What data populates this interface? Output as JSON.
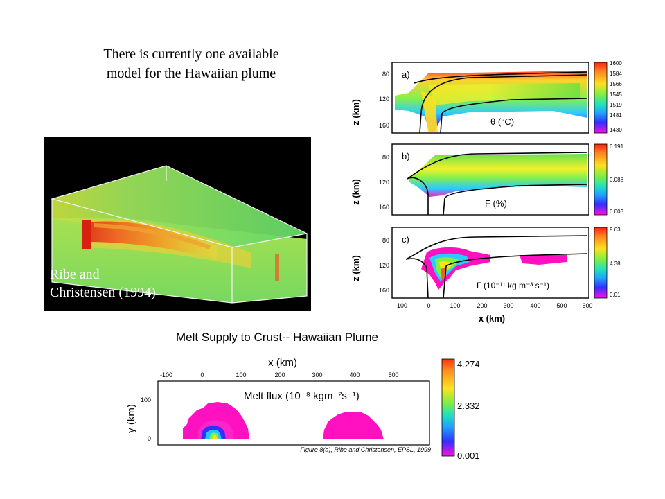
{
  "heading": {
    "line1": "There is currently one available",
    "line2": "model for the Hawaiian plume"
  },
  "render": {
    "caption_line1": "Ribe and",
    "caption_line2": "Christensen (1994)"
  },
  "panels": {
    "ylabel": "z (km)",
    "xlabel": "x (km)",
    "z_ticks": [
      "80",
      "120",
      "160"
    ],
    "x_ticks": [
      "-100",
      "0",
      "100",
      "200",
      "300",
      "400",
      "500",
      "600"
    ],
    "a": {
      "tag": "a)",
      "quantity": "θ (°C)",
      "colorbar_ticks": [
        "1600",
        "1584",
        "1566",
        "1545",
        "1519",
        "1481",
        "1430"
      ]
    },
    "b": {
      "tag": "b)",
      "quantity": "F (%)",
      "colorbar_ticks": [
        "0.191",
        "0.088",
        "0.003"
      ]
    },
    "c": {
      "tag": "c)",
      "quantity": "Γ (10⁻¹¹ kg m⁻³ s⁻¹)",
      "colorbar_ticks": [
        "9.63",
        "4.38",
        "0.01"
      ]
    }
  },
  "melt": {
    "title": "Melt Supply to Crust-- Hawaiian Plume",
    "xlabel": "x (km)",
    "ylabel": "y (km)",
    "x_ticks": [
      "-100",
      "0",
      "100",
      "200",
      "300",
      "400",
      "500"
    ],
    "y_ticks": [
      "100",
      "0"
    ],
    "quantity": "Melt flux (10⁻⁸ kgm⁻²s⁻¹)",
    "colorbar_ticks": [
      "4.274",
      "2.332",
      "0.001"
    ],
    "credit": "Figure 8(a), Ribe and Christensen, EPSL, 1999"
  },
  "colors": {
    "hot": "#e83020",
    "warm": "#ffe020",
    "mid": "#30e050",
    "cool": "#20d0ff",
    "cold": "#ff10c0",
    "render_bg": "#000000",
    "slab": "#7fdc5a"
  }
}
